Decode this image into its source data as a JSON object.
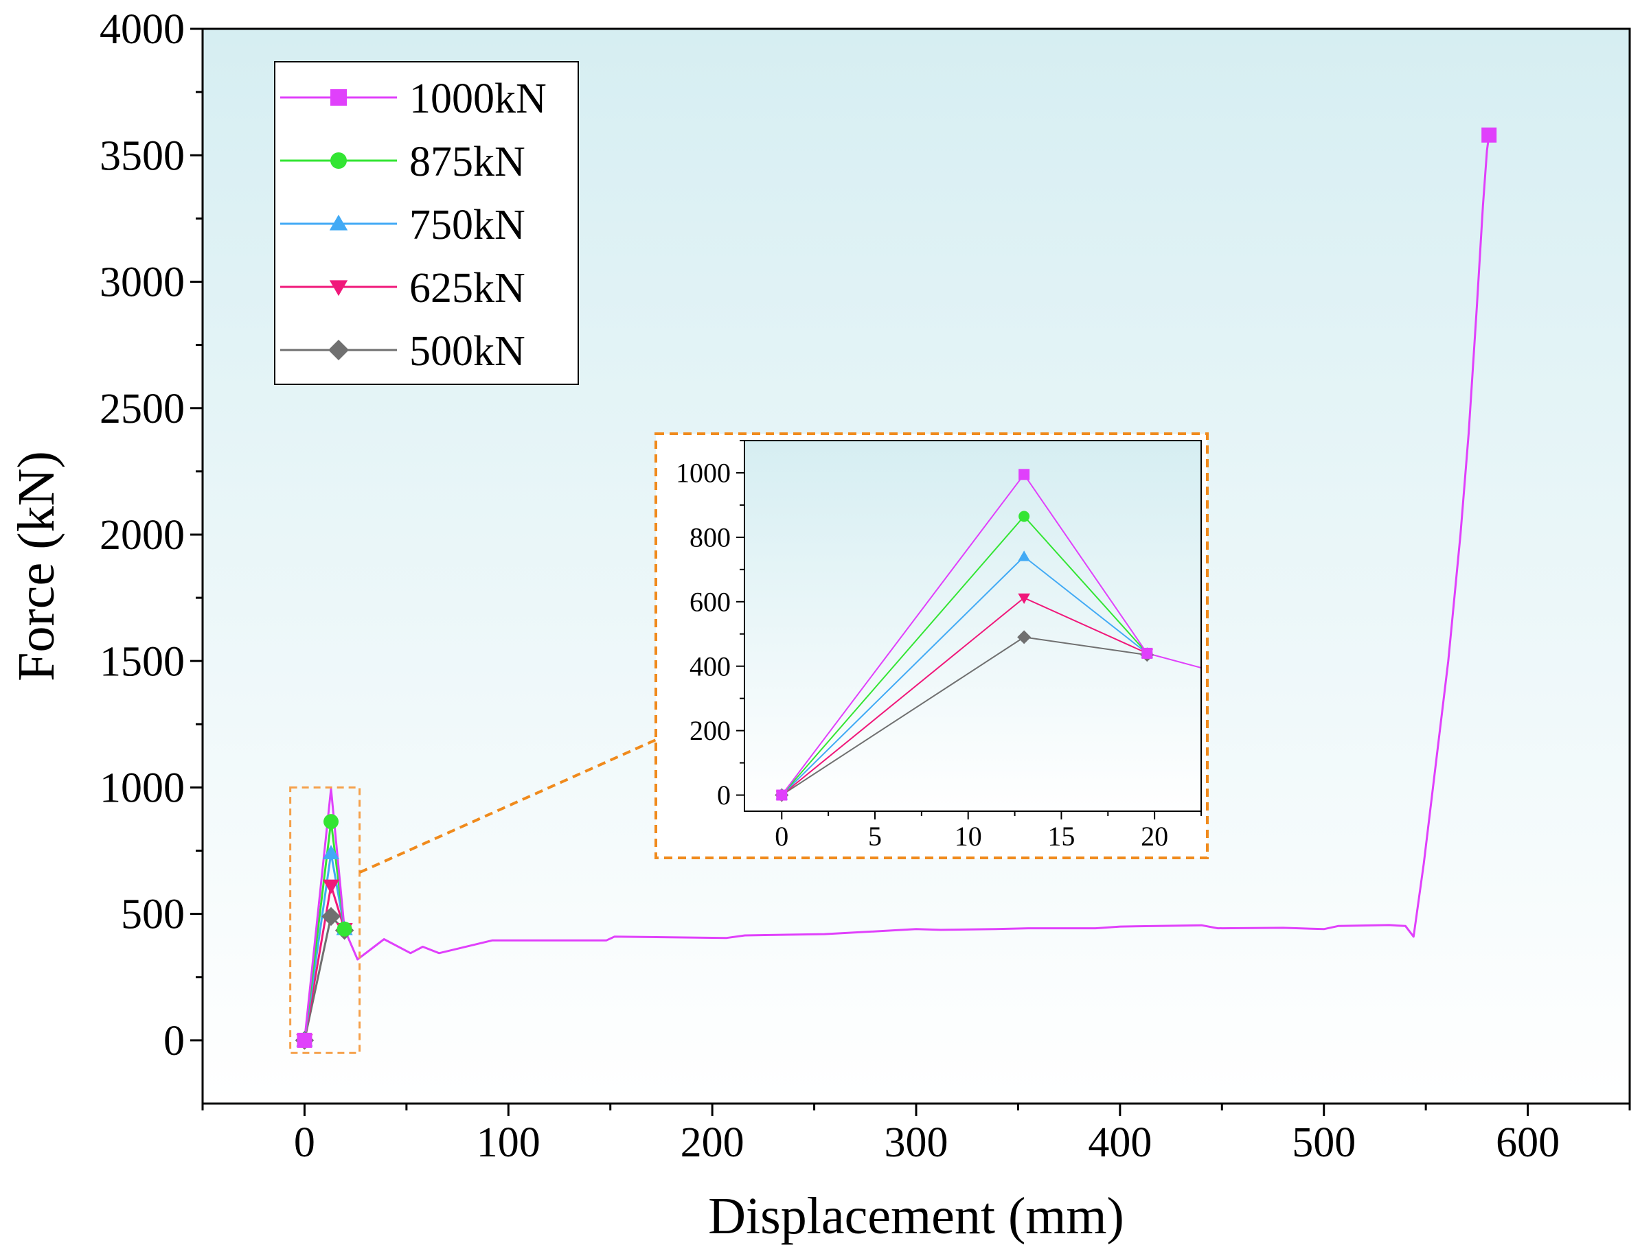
{
  "chart_data": [
    {
      "type": "line",
      "role": "main",
      "title": "",
      "xlabel": "Displacement (mm)",
      "ylabel": "Force (kN)",
      "xlim": [
        -50,
        650
      ],
      "ylim": [
        -250,
        4000
      ],
      "xticks": [
        0,
        100,
        200,
        300,
        400,
        500,
        600
      ],
      "yticks": [
        0,
        500,
        1000,
        1500,
        2000,
        2500,
        3000,
        3500,
        4000
      ],
      "legend_position": "top-left",
      "series": [
        {
          "name": "1000kN",
          "color": "#e040fb",
          "marker": "square",
          "marker_points": [
            [
              0,
              0
            ],
            [
              581,
              3580
            ]
          ],
          "points": [
            [
              0,
              0
            ],
            [
              13,
              995
            ],
            [
              19.6,
              440
            ],
            [
              26,
              320
            ],
            [
              39,
              400
            ],
            [
              52,
              345
            ],
            [
              58,
              370
            ],
            [
              66,
              345
            ],
            [
              92,
              395
            ],
            [
              148,
              395
            ],
            [
              152,
              410
            ],
            [
              207,
              405
            ],
            [
              216,
              415
            ],
            [
              255,
              420
            ],
            [
              278,
              430
            ],
            [
              300,
              440
            ],
            [
              312,
              437
            ],
            [
              339,
              440
            ],
            [
              355,
              443
            ],
            [
              388,
              443
            ],
            [
              400,
              450
            ],
            [
              440,
              455
            ],
            [
              448,
              443
            ],
            [
              480,
              445
            ],
            [
              500,
              440
            ],
            [
              507,
              452
            ],
            [
              532,
              456
            ],
            [
              540,
              452
            ],
            [
              544,
              410
            ],
            [
              549,
              700
            ],
            [
              555,
              1100
            ],
            [
              561,
              1500
            ],
            [
              567,
              2000
            ],
            [
              571,
              2400
            ],
            [
              575,
              2900
            ],
            [
              578,
              3300
            ],
            [
              580,
              3520
            ],
            [
              581,
              3580
            ]
          ]
        },
        {
          "name": "875kN",
          "color": "#33e533",
          "marker": "circle",
          "marker_points": [
            [
              0,
              0
            ],
            [
              13,
              865
            ],
            [
              19.6,
              440
            ]
          ],
          "points": [
            [
              0,
              0
            ],
            [
              13,
              865
            ],
            [
              19.6,
              440
            ]
          ]
        },
        {
          "name": "750kN",
          "color": "#42aaf5",
          "marker": "triangle-up",
          "marker_points": [
            [
              0,
              0
            ],
            [
              13,
              740
            ],
            [
              19.6,
              440
            ]
          ],
          "points": [
            [
              0,
              0
            ],
            [
              13,
              740
            ],
            [
              19.6,
              440
            ]
          ]
        },
        {
          "name": "625kN",
          "color": "#f0187a",
          "marker": "triangle-down",
          "marker_points": [
            [
              0,
              0
            ],
            [
              13,
              612
            ],
            [
              19.6,
              440
            ]
          ],
          "points": [
            [
              0,
              0
            ],
            [
              13,
              612
            ],
            [
              19.6,
              440
            ]
          ]
        },
        {
          "name": "500kN",
          "color": "#707070",
          "marker": "diamond",
          "marker_points": [
            [
              0,
              0
            ],
            [
              13,
              490
            ],
            [
              19.6,
              435
            ]
          ],
          "points": [
            [
              0,
              0
            ],
            [
              13,
              490
            ],
            [
              19.6,
              435
            ]
          ]
        }
      ],
      "zoom_box": {
        "xlim": [
          -7,
          27
        ],
        "ylim": [
          -50,
          1000
        ]
      }
    },
    {
      "type": "line",
      "role": "inset",
      "title": "",
      "xlabel": "",
      "ylabel": "",
      "xlim": [
        -2,
        22.5
      ],
      "ylim": [
        -50,
        1100
      ],
      "xticks": [
        0,
        5,
        10,
        15,
        20
      ],
      "yticks": [
        0,
        200,
        400,
        600,
        800,
        1000
      ],
      "series": [
        {
          "name": "1000kN",
          "color": "#e040fb",
          "marker": "square",
          "marker_points": [
            [
              0,
              0
            ],
            [
              13,
              995
            ],
            [
              19.6,
              440
            ]
          ],
          "points": [
            [
              0,
              0
            ],
            [
              13,
              995
            ],
            [
              19.6,
              440
            ],
            [
              22.5,
              395
            ]
          ]
        },
        {
          "name": "875kN",
          "color": "#33e533",
          "marker": "circle",
          "marker_points": [
            [
              0,
              0
            ],
            [
              13,
              865
            ],
            [
              19.6,
              440
            ]
          ],
          "points": [
            [
              0,
              0
            ],
            [
              13,
              865
            ],
            [
              19.6,
              440
            ]
          ]
        },
        {
          "name": "750kN",
          "color": "#42aaf5",
          "marker": "triangle-up",
          "marker_points": [
            [
              0,
              0
            ],
            [
              13,
              740
            ],
            [
              19.6,
              440
            ]
          ],
          "points": [
            [
              0,
              0
            ],
            [
              13,
              740
            ],
            [
              19.6,
              440
            ]
          ]
        },
        {
          "name": "625kN",
          "color": "#f0187a",
          "marker": "triangle-down",
          "marker_points": [
            [
              0,
              0
            ],
            [
              13,
              612
            ],
            [
              19.6,
              440
            ]
          ],
          "points": [
            [
              0,
              0
            ],
            [
              13,
              612
            ],
            [
              19.6,
              440
            ]
          ]
        },
        {
          "name": "500kN",
          "color": "#707070",
          "marker": "diamond",
          "marker_points": [
            [
              0,
              0
            ],
            [
              13,
              490
            ],
            [
              19.6,
              435
            ]
          ],
          "points": [
            [
              0,
              0
            ],
            [
              13,
              490
            ],
            [
              19.6,
              435
            ]
          ]
        }
      ]
    }
  ],
  "colors": {
    "background_top": "#d6eef2",
    "background_bottom": "#ffffff",
    "zoom_box": "#f5a04a",
    "inset_border": "#f08a1c"
  }
}
